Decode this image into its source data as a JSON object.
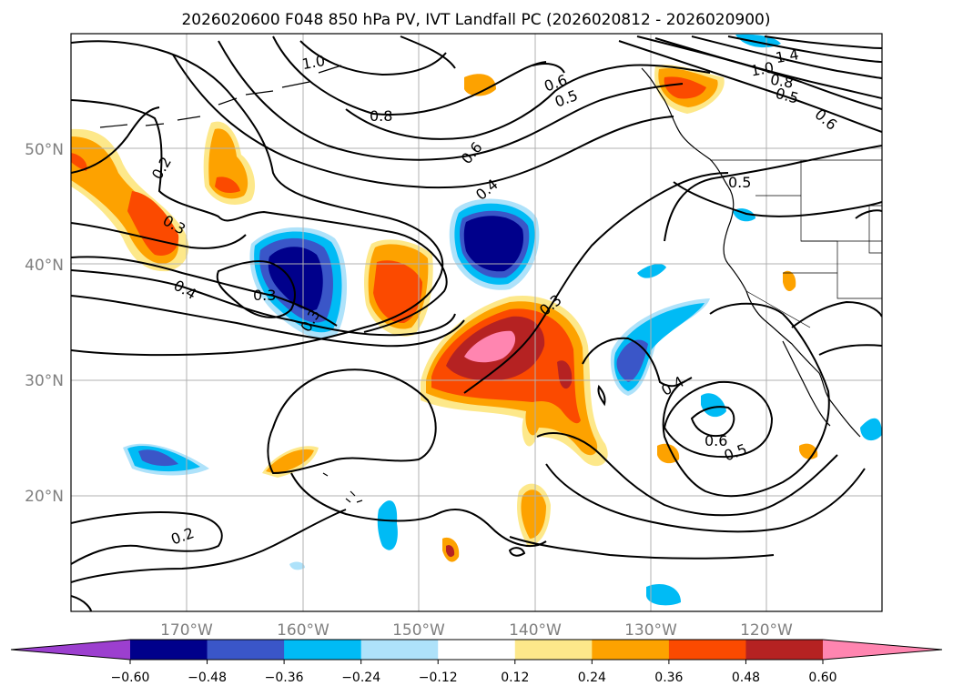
{
  "figure": {
    "title": "2026020600 F048 850 hPa PV, IVT Landfall PC (2026020812 - 2026020900)"
  },
  "axes": {
    "lat_ticks": [
      {
        "value": 50,
        "label": "50°N"
      },
      {
        "value": 40,
        "label": "40°N"
      },
      {
        "value": 30,
        "label": "30°N"
      },
      {
        "value": 20,
        "label": "20°N"
      }
    ],
    "lon_ticks": [
      {
        "value": -170,
        "label": "170°W"
      },
      {
        "value": -160,
        "label": "160°W"
      },
      {
        "value": -150,
        "label": "150°W"
      },
      {
        "value": -140,
        "label": "140°W"
      },
      {
        "value": -130,
        "label": "130°W"
      },
      {
        "value": -120,
        "label": "120°W"
      }
    ],
    "lon_range": [
      -180,
      -110
    ],
    "lat_range": [
      10,
      60
    ],
    "grid": true
  },
  "colorbar": {
    "extend": "both",
    "colors": [
      "#9c3fcf",
      "#00008b",
      "#3a56c8",
      "#00bbf5",
      "#aee2fa",
      "#ffffff",
      "#fde88a",
      "#fda200",
      "#fb4a00",
      "#b52222",
      "#ff85b0"
    ],
    "ticks": [
      "−0.60",
      "−0.48",
      "−0.36",
      "−0.24",
      "−0.12",
      "0.12",
      "0.24",
      "0.36",
      "0.48",
      "0.60"
    ]
  },
  "contour_labels": [
    "0.2",
    "0.3",
    "0.4",
    "0.3",
    "0.3",
    "0.2",
    "1.0",
    "0.8",
    "0.6",
    "0.4",
    "0.6",
    "0.5",
    "1.4",
    "1.0",
    "0.8",
    "0.5",
    "0.6",
    "0.5",
    "0.3",
    "0.4",
    "0.6",
    "0.5"
  ],
  "map_colors": {
    "coast": "#000000",
    "grid": "#b0b0b0",
    "tick_text": "#7f7f7f"
  }
}
